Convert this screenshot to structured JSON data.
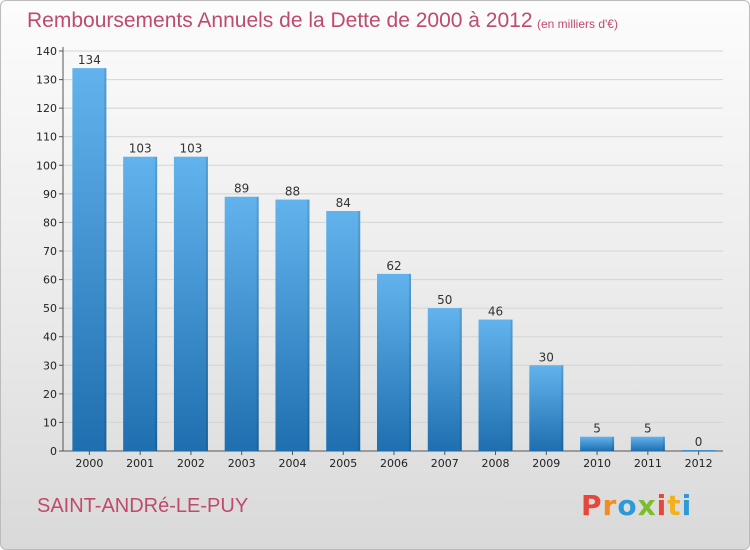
{
  "title": "Remboursements Annuels de la Dette de 2000 à 2012",
  "subtitle": "(en milliers d'€)",
  "commune": "SAINT-ANDRé-LE-PUY",
  "logo": {
    "letters": [
      "P",
      "r",
      "o",
      "x",
      "i",
      "t",
      "i"
    ],
    "colors": [
      "#e5473a",
      "#f28c1e",
      "#2d9ad8",
      "#7bbd2c",
      "#e5473a",
      "#f2b21e",
      "#2d9ad8"
    ]
  },
  "colors": {
    "bar": "#3d95d9",
    "bar_light": "#62b3ed",
    "bar_dark": "#1f6fb0",
    "title": "#c04a6a"
  },
  "chart_data": {
    "type": "bar",
    "title": "Remboursements Annuels de la Dette de 2000 à 2012",
    "xlabel": "",
    "ylabel": "",
    "categories": [
      "2000",
      "2001",
      "2002",
      "2003",
      "2004",
      "2005",
      "2006",
      "2007",
      "2008",
      "2009",
      "2010",
      "2011",
      "2012"
    ],
    "values": [
      134,
      103,
      103,
      89,
      88,
      84,
      62,
      50,
      46,
      30,
      5,
      5,
      0
    ],
    "ylim": [
      0,
      140
    ],
    "yticks": [
      0,
      10,
      20,
      30,
      40,
      50,
      60,
      70,
      80,
      90,
      100,
      110,
      120,
      130,
      140
    ],
    "grid": true
  }
}
